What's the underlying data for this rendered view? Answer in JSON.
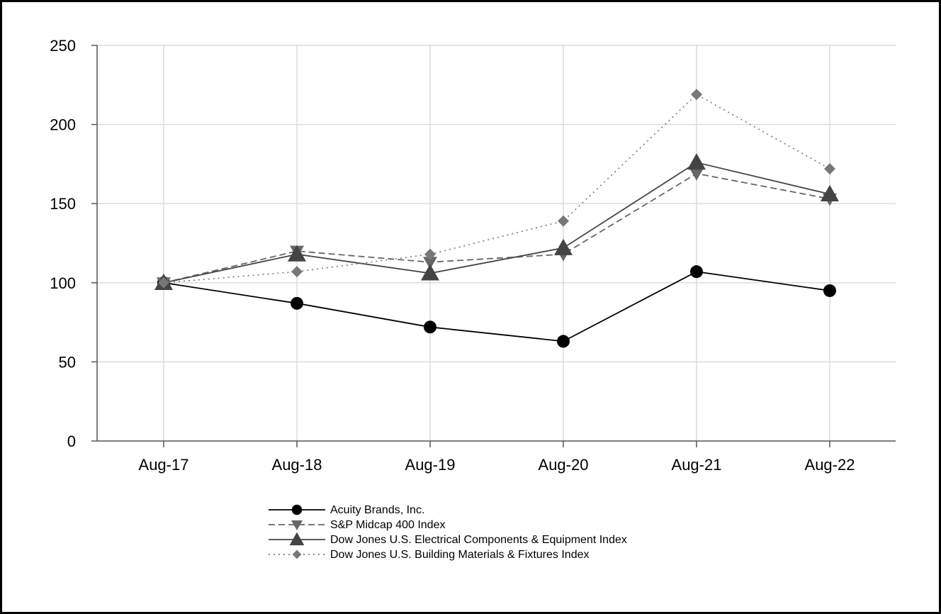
{
  "chart_data": {
    "type": "line",
    "title": "",
    "xlabel": "",
    "ylabel": "",
    "categories": [
      "Aug-17",
      "Aug-18",
      "Aug-19",
      "Aug-20",
      "Aug-21",
      "Aug-22"
    ],
    "ylim": [
      0,
      250
    ],
    "yticks": [
      0,
      50,
      100,
      150,
      200,
      250
    ],
    "grid": true,
    "legend": "bottom",
    "series": [
      {
        "name": "Acuity Brands, Inc.",
        "values": [
          100,
          87,
          72,
          63,
          107,
          95
        ],
        "color": "#000000",
        "dash": "solid",
        "marker": "circle"
      },
      {
        "name": "S&P Midcap 400 Index",
        "values": [
          100,
          120,
          113,
          118,
          169,
          153
        ],
        "color": "#666666",
        "dash": "dashed",
        "marker": "triangle-down"
      },
      {
        "name": "Dow Jones U.S. Electrical Components & Equipment Index",
        "values": [
          100,
          118,
          106,
          122,
          176,
          156
        ],
        "color": "#444444",
        "dash": "solid",
        "marker": "triangle-up"
      },
      {
        "name": "Dow Jones U.S. Building Materials & Fixtures Index",
        "values": [
          100,
          107,
          118,
          139,
          219,
          172
        ],
        "color": "#777777",
        "dash": "dotted",
        "marker": "diamond"
      }
    ]
  }
}
